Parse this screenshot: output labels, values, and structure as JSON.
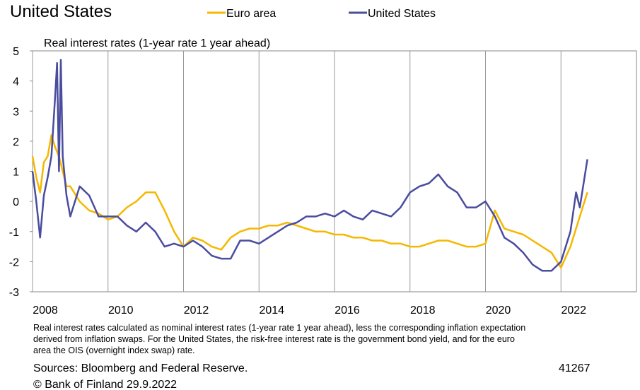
{
  "chart_data": {
    "type": "line",
    "title": "United States",
    "subtitle": "Real interest rates (1-year rate 1 year ahead)",
    "notes": [
      "Real interest rates calculated as nominal interest rates (1-year rate 1 year ahead), less the corresponding inflation expectation",
      "derived from inflation swaps. For the United States, the risk-free interest rate is the government bond yield, and for the euro",
      "area the OIS (overnight index swap) rate."
    ],
    "source": "Sources: Bloomberg and Federal Reserve.",
    "chart_id": "41267",
    "copyright": "© Bank of Finland 29.9.2022",
    "xlim": [
      2008,
      2024
    ],
    "xticks": [
      2008,
      2010,
      2012,
      2014,
      2016,
      2018,
      2020,
      2022
    ],
    "ylim": [
      -3,
      5
    ],
    "yticks": [
      -3,
      -2,
      -1,
      0,
      1,
      2,
      3,
      4,
      5
    ],
    "grid": "x",
    "series": [
      {
        "name": "Euro area",
        "color": "#f5b800",
        "x": [
          2008.0,
          2008.1,
          2008.2,
          2008.3,
          2008.4,
          2008.5,
          2008.6,
          2008.7,
          2008.8,
          2008.9,
          2009.0,
          2009.25,
          2009.5,
          2009.75,
          2010.0,
          2010.25,
          2010.5,
          2010.75,
          2011.0,
          2011.25,
          2011.5,
          2011.75,
          2012.0,
          2012.25,
          2012.5,
          2012.75,
          2013.0,
          2013.25,
          2013.5,
          2013.75,
          2014.0,
          2014.25,
          2014.5,
          2014.75,
          2015.0,
          2015.25,
          2015.5,
          2015.75,
          2016.0,
          2016.25,
          2016.5,
          2016.75,
          2017.0,
          2017.25,
          2017.5,
          2017.75,
          2018.0,
          2018.25,
          2018.5,
          2018.75,
          2019.0,
          2019.25,
          2019.5,
          2019.75,
          2020.0,
          2020.25,
          2020.5,
          2020.75,
          2021.0,
          2021.25,
          2021.5,
          2021.75,
          2022.0,
          2022.25,
          2022.5,
          2022.7
        ],
        "values": [
          1.5,
          0.8,
          0.3,
          1.3,
          1.5,
          2.2,
          1.8,
          1.5,
          1.0,
          0.5,
          0.5,
          0.0,
          -0.3,
          -0.4,
          -0.6,
          -0.5,
          -0.2,
          0.0,
          0.3,
          0.3,
          -0.3,
          -1.0,
          -1.5,
          -1.2,
          -1.3,
          -1.5,
          -1.6,
          -1.2,
          -1.0,
          -0.9,
          -0.9,
          -0.8,
          -0.8,
          -0.7,
          -0.8,
          -0.9,
          -1.0,
          -1.0,
          -1.1,
          -1.1,
          -1.2,
          -1.2,
          -1.3,
          -1.3,
          -1.4,
          -1.4,
          -1.5,
          -1.5,
          -1.4,
          -1.3,
          -1.3,
          -1.4,
          -1.5,
          -1.5,
          -1.4,
          -0.3,
          -0.9,
          -1.0,
          -1.1,
          -1.3,
          -1.5,
          -1.7,
          -2.2,
          -1.5,
          -0.5,
          0.3
        ]
      },
      {
        "name": "United States",
        "color": "#4a4c9e",
        "x": [
          2008.0,
          2008.1,
          2008.2,
          2008.3,
          2008.4,
          2008.5,
          2008.6,
          2008.65,
          2008.7,
          2008.75,
          2008.8,
          2008.9,
          2009.0,
          2009.25,
          2009.5,
          2009.75,
          2010.0,
          2010.25,
          2010.5,
          2010.75,
          2011.0,
          2011.25,
          2011.5,
          2011.75,
          2012.0,
          2012.25,
          2012.5,
          2012.75,
          2013.0,
          2013.25,
          2013.5,
          2013.75,
          2014.0,
          2014.25,
          2014.5,
          2014.75,
          2015.0,
          2015.25,
          2015.5,
          2015.75,
          2016.0,
          2016.25,
          2016.5,
          2016.75,
          2017.0,
          2017.25,
          2017.5,
          2017.75,
          2018.0,
          2018.25,
          2018.5,
          2018.75,
          2019.0,
          2019.25,
          2019.5,
          2019.75,
          2020.0,
          2020.25,
          2020.5,
          2020.75,
          2021.0,
          2021.25,
          2021.5,
          2021.75,
          2022.0,
          2022.25,
          2022.4,
          2022.5,
          2022.7
        ],
        "values": [
          1.0,
          0.0,
          -1.2,
          0.2,
          0.8,
          1.5,
          3.5,
          4.6,
          1.0,
          4.7,
          1.5,
          0.2,
          -0.5,
          0.5,
          0.2,
          -0.5,
          -0.5,
          -0.5,
          -0.8,
          -1.0,
          -0.7,
          -1.0,
          -1.5,
          -1.4,
          -1.5,
          -1.3,
          -1.5,
          -1.8,
          -1.9,
          -1.9,
          -1.3,
          -1.3,
          -1.4,
          -1.2,
          -1.0,
          -0.8,
          -0.7,
          -0.5,
          -0.5,
          -0.4,
          -0.5,
          -0.3,
          -0.5,
          -0.6,
          -0.3,
          -0.4,
          -0.5,
          -0.2,
          0.3,
          0.5,
          0.6,
          0.9,
          0.5,
          0.3,
          -0.2,
          -0.2,
          0.0,
          -0.5,
          -1.2,
          -1.4,
          -1.7,
          -2.1,
          -2.3,
          -2.3,
          -2.0,
          -1.0,
          0.3,
          -0.2,
          1.4
        ]
      }
    ]
  }
}
